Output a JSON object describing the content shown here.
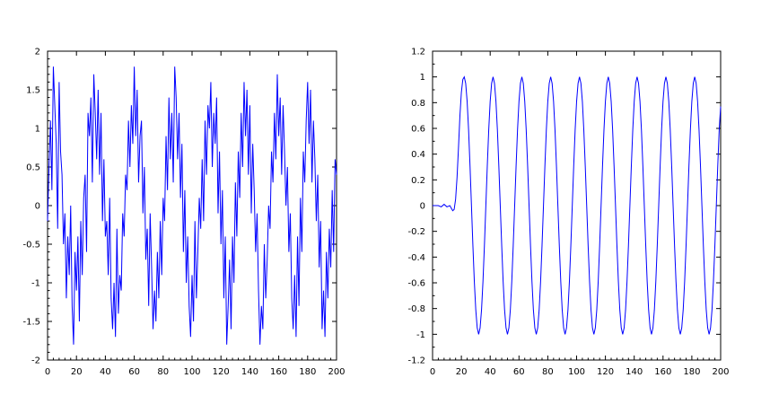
{
  "chart_data": [
    {
      "type": "line",
      "title": "",
      "xlabel": "",
      "ylabel": "",
      "xlim": [
        0,
        200
      ],
      "ylim": [
        -2,
        2
      ],
      "grid": false,
      "legend": "none",
      "x_ticks": [
        0,
        20,
        40,
        60,
        80,
        100,
        120,
        140,
        160,
        180,
        200
      ],
      "x_tick_labels": [
        "0",
        "20",
        "40",
        "60",
        "80",
        "100",
        "120",
        "140",
        "160",
        "180",
        "200"
      ],
      "y_ticks": [
        -2,
        -1.5,
        -1,
        -0.5,
        0,
        0.5,
        1,
        1.5,
        2
      ],
      "y_tick_labels": [
        "-2",
        "-1.5",
        "-1",
        "-0.5",
        "0",
        "0.5",
        "1",
        "1.5",
        "2"
      ],
      "series": [
        {
          "color": "#0000ff",
          "x_start": 0,
          "x_step": 1,
          "values": [
            -0.2,
            0.5,
            1.1,
            0.2,
            1.8,
            1.3,
            0.8,
            -0.3,
            1.6,
            0.7,
            0.4,
            -0.5,
            -0.1,
            -1.2,
            -0.4,
            -0.9,
            0.0,
            -1.3,
            -1.8,
            -0.6,
            -1.1,
            -0.4,
            -1.5,
            -0.2,
            -0.9,
            0.1,
            0.4,
            -0.6,
            1.2,
            0.9,
            1.4,
            0.3,
            1.7,
            1.2,
            0.6,
            1.5,
            0.4,
            1.2,
            -0.2,
            0.6,
            -0.4,
            -0.2,
            -0.9,
            0.1,
            -1.2,
            -1.6,
            -1.0,
            -1.7,
            -0.3,
            -1.4,
            -0.9,
            -1.1,
            -0.1,
            -0.4,
            0.4,
            0.2,
            1.1,
            0.5,
            1.3,
            0.8,
            1.8,
            0.9,
            1.5,
            0.3,
            0.9,
            1.1,
            -0.1,
            0.5,
            -0.7,
            -0.3,
            -1.3,
            -0.1,
            -0.8,
            -1.6,
            -1.1,
            -1.5,
            -0.6,
            -1.2,
            -0.2,
            -0.9,
            0.1,
            -0.2,
            0.9,
            0.2,
            1.4,
            0.6,
            1.2,
            0.3,
            1.8,
            1.4,
            0.6,
            1.2,
            0.1,
            0.8,
            -0.6,
            0.2,
            -1.0,
            -0.4,
            -1.3,
            -1.7,
            -0.9,
            -1.5,
            -0.2,
            -1.2,
            -0.6,
            0.1,
            -0.3,
            0.6,
            -0.2,
            1.1,
            0.4,
            1.3,
            1.0,
            1.6,
            0.5,
            1.2,
            0.8,
            1.4,
            -0.1,
            0.7,
            -0.5,
            0.2,
            -1.2,
            -0.4,
            -1.8,
            -1.3,
            -0.7,
            -1.6,
            -0.4,
            -1.0,
            0.3,
            -0.4,
            0.7,
            0.1,
            1.2,
            0.5,
            1.6,
            0.9,
            1.5,
            0.4,
            1.3,
            -0.1,
            0.8,
            0.2,
            -0.6,
            -0.1,
            -1.1,
            -1.8,
            -1.3,
            -1.6,
            -0.5,
            -1.2,
            -0.7,
            0.0,
            -0.3,
            0.7,
            0.3,
            1.2,
            0.6,
            1.7,
            0.9,
            1.4,
            0.4,
            1.3,
            0.7,
            0.0,
            0.5,
            -0.6,
            -0.1,
            -1.2,
            -1.6,
            -0.9,
            -1.7,
            -0.4,
            -1.3,
            0.1,
            -0.6,
            0.7,
            0.3,
            1.1,
            1.6,
            0.8,
            1.5,
            0.3,
            1.1,
            0.6,
            -0.2,
            0.4,
            -0.8,
            -0.2,
            -1.6,
            -1.1,
            -1.7,
            -0.6,
            -1.2,
            -0.3,
            -0.8,
            0.2,
            -0.6,
            0.6,
            0.4
          ]
        }
      ]
    },
    {
      "type": "line",
      "title": "",
      "xlabel": "",
      "ylabel": "",
      "xlim": [
        0,
        200
      ],
      "ylim": [
        -1.2,
        1.2
      ],
      "grid": false,
      "legend": "none",
      "x_ticks": [
        0,
        20,
        40,
        60,
        80,
        100,
        120,
        140,
        160,
        180,
        200
      ],
      "x_tick_labels": [
        "0",
        "20",
        "40",
        "60",
        "80",
        "100",
        "120",
        "140",
        "160",
        "180",
        "200"
      ],
      "y_ticks": [
        -1.2,
        -1,
        -0.8,
        -0.6,
        -0.4,
        -0.2,
        0,
        0.2,
        0.4,
        0.6,
        0.8,
        1,
        1.2
      ],
      "y_tick_labels": [
        "-1.2",
        "-1",
        "-0.8",
        "-0.6",
        "-0.4",
        "-0.2",
        "0",
        "0.2",
        "0.4",
        "0.6",
        "0.8",
        "1",
        "1.2"
      ],
      "series": [
        {
          "color": "#0000ff",
          "x": [
            0,
            2,
            4,
            6,
            8,
            10,
            12,
            13,
            14,
            15,
            16,
            17,
            18,
            19,
            20,
            21,
            22,
            23,
            24,
            25,
            26,
            27,
            28,
            29,
            30,
            31,
            32,
            33,
            34,
            35,
            36,
            37,
            38,
            39,
            40,
            41,
            42,
            43,
            44,
            45,
            46,
            47,
            48,
            49,
            50,
            51,
            52,
            53,
            54,
            55,
            56,
            57,
            58,
            59,
            60,
            61,
            62,
            63,
            64,
            65,
            66,
            67,
            68,
            69,
            70,
            71,
            72,
            73,
            74,
            75,
            76,
            77,
            78,
            79,
            80,
            81,
            82,
            83,
            84,
            85,
            86,
            87,
            88,
            89,
            90,
            91,
            92,
            93,
            94,
            95,
            96,
            97,
            98,
            99,
            100,
            101,
            102,
            103,
            104,
            105,
            106,
            107,
            108,
            109,
            110,
            111,
            112,
            113,
            114,
            115,
            116,
            117,
            118,
            119,
            120,
            121,
            122,
            123,
            124,
            125,
            126,
            127,
            128,
            129,
            130,
            131,
            132,
            133,
            134,
            135,
            136,
            137,
            138,
            139,
            140,
            141,
            142,
            143,
            144,
            145,
            146,
            147,
            148,
            149,
            150,
            151,
            152,
            153,
            154,
            155,
            156,
            157,
            158,
            159,
            160,
            161,
            162,
            163,
            164,
            165,
            166,
            167,
            168,
            169,
            170,
            171,
            172,
            173,
            174,
            175,
            176,
            177,
            178,
            179,
            180,
            181,
            182,
            183,
            184,
            185,
            186,
            187,
            188,
            189,
            190,
            191,
            192,
            193,
            194,
            195,
            196,
            197,
            198,
            199,
            200
          ],
          "y": [
            0.0,
            0.0,
            0.0,
            -0.01,
            0.01,
            -0.01,
            0.0,
            -0.02,
            -0.04,
            -0.03,
            0.05,
            0.22,
            0.45,
            0.7,
            0.88,
            0.98,
            1.0,
            0.95,
            0.81,
            0.59,
            0.31,
            0.0,
            -0.31,
            -0.59,
            -0.81,
            -0.95,
            -1.0,
            -0.95,
            -0.81,
            -0.59,
            -0.31,
            0.0,
            0.31,
            0.59,
            0.81,
            0.95,
            1.0,
            0.95,
            0.81,
            0.59,
            0.31,
            0.0,
            -0.31,
            -0.59,
            -0.81,
            -0.95,
            -1.0,
            -0.95,
            -0.81,
            -0.59,
            -0.31,
            0.0,
            0.31,
            0.59,
            0.81,
            0.95,
            1.0,
            0.95,
            0.81,
            0.59,
            0.31,
            0.0,
            -0.31,
            -0.59,
            -0.81,
            -0.95,
            -1.0,
            -0.95,
            -0.81,
            -0.59,
            -0.31,
            0.0,
            0.31,
            0.59,
            0.81,
            0.95,
            1.0,
            0.95,
            0.81,
            0.59,
            0.31,
            0.0,
            -0.31,
            -0.59,
            -0.81,
            -0.95,
            -1.0,
            -0.95,
            -0.81,
            -0.59,
            -0.31,
            0.0,
            0.31,
            0.59,
            0.81,
            0.95,
            1.0,
            0.95,
            0.81,
            0.59,
            0.31,
            0.0,
            -0.31,
            -0.59,
            -0.81,
            -0.95,
            -1.0,
            -0.95,
            -0.81,
            -0.59,
            -0.31,
            0.0,
            0.31,
            0.59,
            0.81,
            0.95,
            1.0,
            0.95,
            0.81,
            0.59,
            0.31,
            0.0,
            -0.31,
            -0.59,
            -0.81,
            -0.95,
            -1.0,
            -0.95,
            -0.81,
            -0.59,
            -0.31,
            0.0,
            0.31,
            0.59,
            0.81,
            0.95,
            1.0,
            0.95,
            0.81,
            0.59,
            0.31,
            0.0,
            -0.31,
            -0.59,
            -0.81,
            -0.95,
            -1.0,
            -0.95,
            -0.81,
            -0.59,
            -0.31,
            0.0,
            0.31,
            0.59,
            0.81,
            0.95,
            1.0,
            0.95,
            0.81,
            0.59,
            0.31,
            0.0,
            -0.31,
            -0.59,
            -0.81,
            -0.95,
            -1.0,
            -0.95,
            -0.81,
            -0.59,
            -0.31,
            0.0,
            0.31,
            0.59,
            0.81,
            0.95,
            1.0,
            0.95,
            0.81,
            0.59,
            0.31,
            0.0,
            -0.31,
            -0.59,
            -0.81,
            -0.95,
            -1.0,
            -0.95,
            -0.81,
            -0.59,
            -0.31,
            0.0,
            0.31,
            0.59,
            0.77
          ]
        }
      ]
    }
  ]
}
